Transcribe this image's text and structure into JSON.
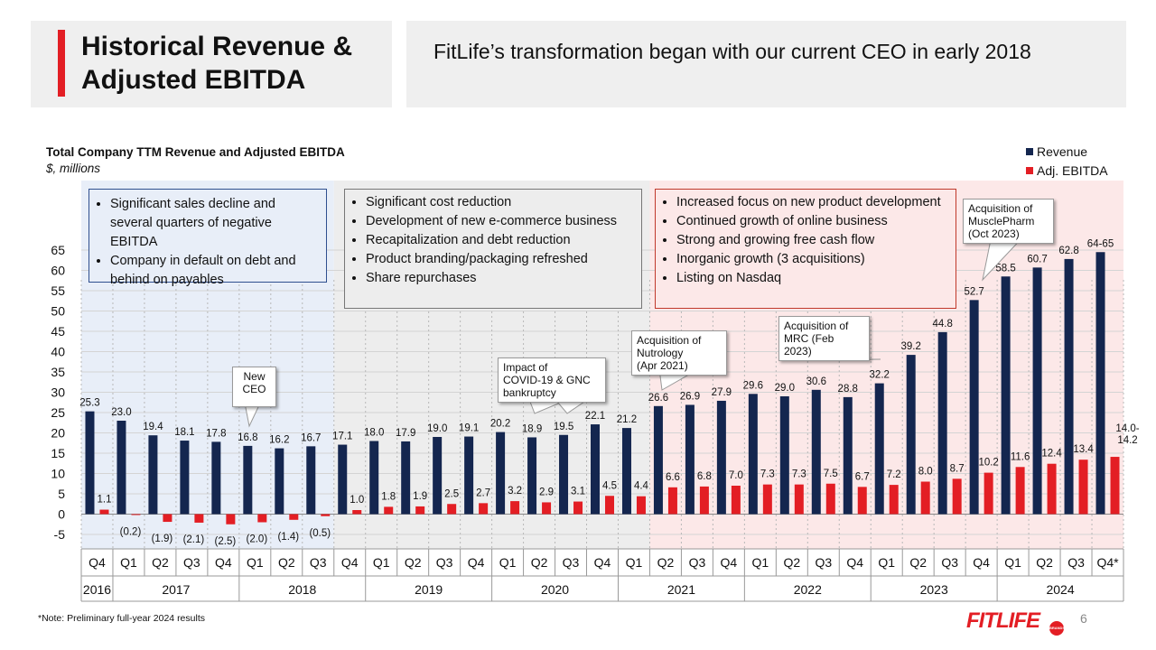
{
  "header": {
    "title": "Historical Revenue & Adjusted EBITDA",
    "subtitle": "FitLife’s transformation began with our current CEO in early 2018"
  },
  "chart_data": {
    "type": "bar",
    "title": "Total Company TTM Revenue and Adjusted EBITDA",
    "subtitle": "$, millions",
    "ylim": [
      -5,
      65
    ],
    "yticks": [
      65,
      60,
      55,
      50,
      45,
      40,
      35,
      30,
      25,
      20,
      15,
      10,
      5,
      0,
      -5
    ],
    "categories": [
      "Q4",
      "Q1",
      "Q2",
      "Q3",
      "Q4",
      "Q1",
      "Q2",
      "Q3",
      "Q4",
      "Q1",
      "Q2",
      "Q3",
      "Q4",
      "Q1",
      "Q2",
      "Q3",
      "Q4",
      "Q1",
      "Q2",
      "Q3",
      "Q4",
      "Q1",
      "Q2",
      "Q3",
      "Q4",
      "Q1",
      "Q2",
      "Q3",
      "Q4",
      "Q1",
      "Q2",
      "Q3",
      "Q4*"
    ],
    "years": [
      {
        "label": "2016",
        "span": 1
      },
      {
        "label": "2017",
        "span": 4
      },
      {
        "label": "2018",
        "span": 4
      },
      {
        "label": "2019",
        "span": 4
      },
      {
        "label": "2020",
        "span": 4
      },
      {
        "label": "2021",
        "span": 4
      },
      {
        "label": "2022",
        "span": 4
      },
      {
        "label": "2023",
        "span": 4
      },
      {
        "label": "2024",
        "span": 4
      }
    ],
    "series": [
      {
        "name": "Revenue",
        "color": "#14264f",
        "values": [
          25.3,
          23.0,
          19.4,
          18.1,
          17.8,
          16.8,
          16.2,
          16.7,
          17.1,
          18.0,
          17.9,
          19.0,
          19.1,
          20.2,
          18.9,
          19.5,
          22.1,
          21.2,
          26.6,
          26.9,
          27.9,
          29.6,
          29.0,
          30.6,
          28.8,
          32.2,
          39.2,
          44.8,
          52.7,
          58.5,
          60.7,
          62.8,
          64.5
        ],
        "labels": [
          "25.3",
          "23.0",
          "19.4",
          "18.1",
          "17.8",
          "16.8",
          "16.2",
          "16.7",
          "17.1",
          "18.0",
          "17.9",
          "19.0",
          "19.1",
          "20.2",
          "18.9",
          "19.5",
          "22.1",
          "21.2",
          "26.6",
          "26.9",
          "27.9",
          "29.6",
          "29.0",
          "30.6",
          "28.8",
          "32.2",
          "39.2",
          "44.8",
          "52.7",
          "58.5",
          "60.7",
          "62.8",
          "64-65"
        ]
      },
      {
        "name": "Adj. EBITDA",
        "color": "#e31e24",
        "values": [
          1.1,
          -0.2,
          -1.9,
          -2.1,
          -2.5,
          -2.0,
          -1.4,
          -0.5,
          1.0,
          1.8,
          1.9,
          2.5,
          2.7,
          3.2,
          2.9,
          3.1,
          4.5,
          4.4,
          6.6,
          6.8,
          7.0,
          7.3,
          7.3,
          7.5,
          6.7,
          7.2,
          8.0,
          8.7,
          10.2,
          11.6,
          12.4,
          13.4,
          14.1
        ],
        "labels": [
          "1.1",
          "(0.2)",
          "(1.9)",
          "(2.1)",
          "(2.5)",
          "(2.0)",
          "(1.4)",
          "(0.5)",
          "1.0",
          "1.8",
          "1.9",
          "2.5",
          "2.7",
          "3.2",
          "2.9",
          "3.1",
          "4.5",
          "4.4",
          "6.6",
          "6.8",
          "7.0",
          "7.3",
          "7.3",
          "7.5",
          "6.7",
          "7.2",
          "8.0",
          "8.7",
          "10.2",
          "11.6",
          "12.4",
          "13.4",
          "14.0-\n14.2"
        ]
      }
    ],
    "legend": [
      "Revenue",
      "Adj. EBITDA"
    ],
    "phases": [
      {
        "from": 0,
        "to": 7,
        "color": "#e8eef8"
      },
      {
        "from": 8,
        "to": 17,
        "color": "#ededed"
      },
      {
        "from": 18,
        "to": 32,
        "color": "#fce8e8"
      }
    ],
    "phase_boxes": [
      {
        "items": [
          "Significant sales decline and several quarters of negative EBITDA",
          "Company in default on debt and behind on payables"
        ],
        "border": "#2f4f8f",
        "bg": "#e8eef8"
      },
      {
        "items": [
          "Significant cost reduction",
          "Development of new e-commerce business",
          "Recapitalization and debt reduction",
          "Product branding/packaging refreshed",
          "Share repurchases"
        ],
        "border": "#777777",
        "bg": "#ededed"
      },
      {
        "items": [
          "Increased focus on new product development",
          "Continued growth of online business",
          "Strong and growing free cash flow",
          "Inorganic growth (3 acquisitions)",
          "Listing on Nasdaq"
        ],
        "border": "#c0392b",
        "bg": "#fce8e8"
      }
    ],
    "annotations": [
      {
        "text": "New\nCEO",
        "index": 5
      },
      {
        "text": "Impact of\nCOVID-19 & GNC\nbankruptcy",
        "index": 14
      },
      {
        "text": "Acquisition of\nNutrology\n(Apr 2021)",
        "index": 18
      },
      {
        "text": "Acquisition of\nMRC (Feb\n2023)",
        "index": 26
      },
      {
        "text": "Acquisition of\nMusclePharm\n(Oct 2023)",
        "index": 28
      }
    ]
  },
  "footer": {
    "note": "*Note: Preliminary full-year 2024 results",
    "page": "6",
    "logo": "FITLIFE",
    "logo_badge": "BRANDS"
  }
}
